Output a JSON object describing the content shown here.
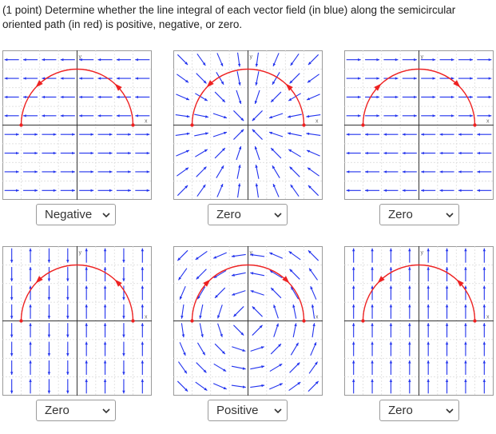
{
  "question": "(1 point) Determine whether the line integral of each vector field (in blue) along the semicircular oriented path (in red) is positive, negative, or zero.",
  "icons": {
    "dropdown": "chevron-down-icon"
  },
  "colors": {
    "field": "#2233ee",
    "path": "#ee2222",
    "axis": "#333333",
    "grid": "#d8d8d8",
    "border": "#9a9a9a"
  },
  "axis_labels": {
    "y": "y",
    "x": "x"
  },
  "panels": [
    {
      "answer": "Negative",
      "field": "left_upper_right_lower",
      "direction": "ccw"
    },
    {
      "answer": "Zero",
      "field": "radial_inward",
      "direction": "ccw"
    },
    {
      "answer": "Zero",
      "field": "right_upper_left_lower",
      "direction": "cw"
    },
    {
      "answer": "Zero",
      "field": "vertical_up_down_by_column",
      "direction": "ccw"
    },
    {
      "answer": "Positive",
      "field": "rotational_ccw",
      "direction": "cw"
    },
    {
      "answer": "Zero",
      "field": "vertical_up",
      "direction": "ccw"
    }
  ]
}
